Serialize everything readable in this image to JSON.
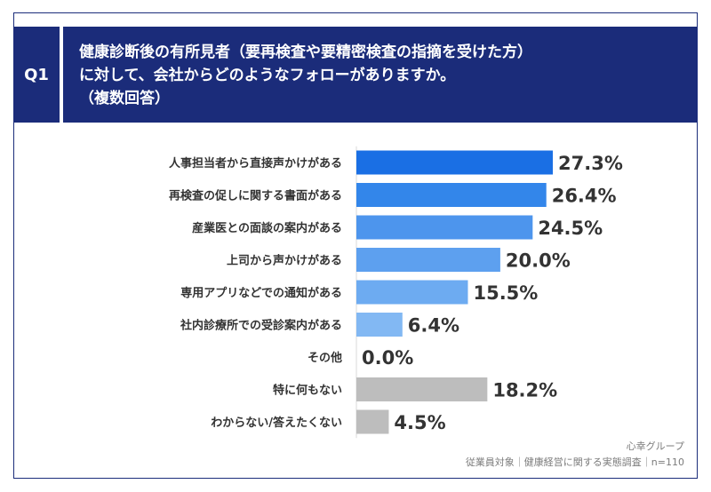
{
  "question": {
    "badge": "Q1",
    "lines": [
      "健康診断後の有所見者（要再検査や要精密検査の指摘を受けた方）",
      "に対して、会社からどのようなフォローがありますか。",
      "（複数回答）"
    ]
  },
  "footer": {
    "source": "心幸グループ",
    "note": "従業員対象｜健康経営に関する実態調査｜n=110"
  },
  "chart_data": {
    "type": "bar",
    "orientation": "horizontal",
    "categories": [
      "人事担当者から直接声かけがある",
      "再検査の促しに関する書面がある",
      "産業医との面談の案内がある",
      "上司から声かけがある",
      "専用アプリなどでの通知がある",
      "社内診療所での受診案内がある",
      "その他",
      "特に何もない",
      "わからない/答えたくない"
    ],
    "values": [
      27.3,
      26.4,
      24.5,
      20.0,
      15.5,
      6.4,
      0.0,
      18.2,
      4.5
    ],
    "value_labels": [
      "27.3%",
      "26.4%",
      "24.5%",
      "20.0%",
      "15.5%",
      "6.4%",
      "0.0%",
      "18.2%",
      "4.5%"
    ],
    "colors": [
      "#1a6fe4",
      "#3386ea",
      "#4d95ed",
      "#5da0ef",
      "#6dabf1",
      "#82b8f3",
      "#9fc8f5",
      "#bdbdbd",
      "#bdbdbd"
    ],
    "xlim": [
      0,
      30
    ],
    "grid": false,
    "legend": "none"
  }
}
